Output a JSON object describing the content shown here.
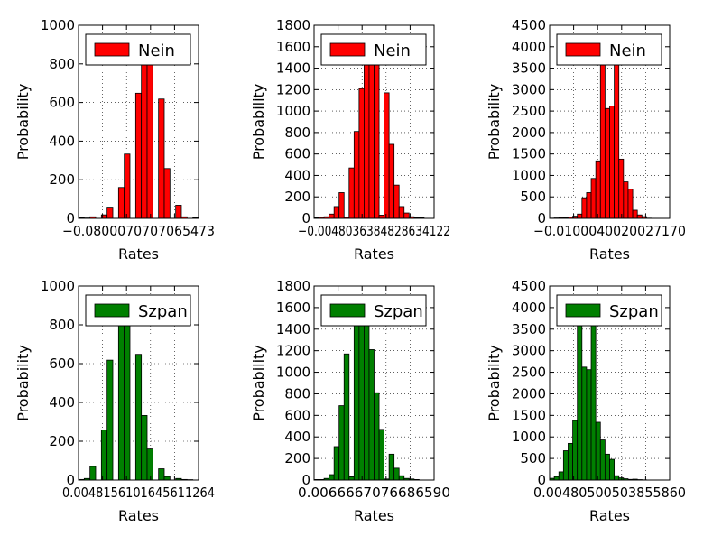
{
  "chart_data": [
    {
      "type": "bar",
      "xlabel": "Rates",
      "ylabel": "Probability",
      "ylim": [
        0,
        1000
      ],
      "yticks": [
        "0",
        "200",
        "400",
        "600",
        "800",
        "1000"
      ],
      "xtick_labels": "−0.0800070707065473",
      "legend": {
        "label": "Nein",
        "color": "#ff0000",
        "position": "top-left"
      },
      "grid": true,
      "bins": 21,
      "values": [
        3,
        2,
        8,
        0,
        18,
        58,
        0,
        160,
        333,
        0,
        648,
        829,
        902,
        0,
        618,
        258,
        0,
        68,
        8,
        0,
        3
      ]
    },
    {
      "type": "bar",
      "xlabel": "Rates",
      "ylabel": "Probability",
      "ylim": [
        0,
        1800
      ],
      "yticks": [
        "0",
        "200",
        "400",
        "600",
        "800",
        "1000",
        "1200",
        "1400",
        "1600",
        "1800"
      ],
      "xtick_labels": "−0.0048036384828634122",
      "legend": {
        "label": "Nein",
        "color": "#ff0000",
        "position": "top-left"
      },
      "grid": true,
      "bins": 24,
      "values": [
        5,
        10,
        15,
        40,
        110,
        240,
        10,
        470,
        810,
        1210,
        1500,
        1560,
        1520,
        30,
        1170,
        690,
        310,
        110,
        50,
        15,
        5,
        5,
        0,
        0
      ]
    },
    {
      "type": "bar",
      "xlabel": "Rates",
      "ylabel": "Probability",
      "ylim": [
        0,
        4500
      ],
      "yticks": [
        "0",
        "500",
        "1000",
        "1500",
        "2000",
        "2500",
        "3000",
        "3500",
        "4000",
        "4500"
      ],
      "xtick_labels": "−0.0100040020027170",
      "legend": {
        "label": "Nein",
        "color": "#ff0000",
        "position": "top-left"
      },
      "grid": true,
      "bins": 26,
      "values": [
        5,
        10,
        20,
        15,
        30,
        50,
        100,
        480,
        600,
        930,
        1340,
        3600,
        2560,
        2620,
        3630,
        1380,
        850,
        680,
        190,
        80,
        40,
        5,
        0,
        0,
        0,
        0
      ]
    },
    {
      "type": "bar",
      "xlabel": "Rates",
      "ylabel": "Probability",
      "ylim": [
        0,
        1000
      ],
      "yticks": [
        "0",
        "200",
        "400",
        "600",
        "800",
        "1000"
      ],
      "xtick_labels": "0.0048156101645611264",
      "legend": {
        "label": "Szpan",
        "color": "#008000",
        "position": "top-left"
      },
      "grid": true,
      "bins": 21,
      "values": [
        3,
        8,
        70,
        0,
        258,
        618,
        0,
        902,
        829,
        0,
        648,
        333,
        160,
        0,
        58,
        18,
        0,
        8,
        3,
        2,
        0
      ]
    },
    {
      "type": "bar",
      "xlabel": "Rates",
      "ylabel": "Probability",
      "ylim": [
        0,
        1800
      ],
      "yticks": [
        "0",
        "200",
        "400",
        "600",
        "800",
        "1000",
        "1200",
        "1400",
        "1600",
        "1800"
      ],
      "xtick_labels": "0.0066667076686590",
      "legend": {
        "label": "Szpan",
        "color": "#008000",
        "position": "top-left"
      },
      "grid": true,
      "bins": 24,
      "values": [
        5,
        5,
        15,
        50,
        310,
        690,
        1170,
        30,
        1520,
        1560,
        1500,
        1210,
        810,
        470,
        10,
        240,
        110,
        40,
        15,
        10,
        5,
        0,
        0,
        0
      ]
    },
    {
      "type": "bar",
      "xlabel": "Rates",
      "ylabel": "Probability",
      "ylim": [
        0,
        4500
      ],
      "yticks": [
        "0",
        "500",
        "1000",
        "1500",
        "2000",
        "2500",
        "3000",
        "3500",
        "4000",
        "4500"
      ],
      "xtick_labels": "0.00480500503855860",
      "legend": {
        "label": "Szpan",
        "color": "#008000",
        "position": "top-left"
      },
      "grid": true,
      "bins": 26,
      "values": [
        40,
        80,
        190,
        680,
        850,
        1380,
        3630,
        2620,
        2560,
        3600,
        1340,
        930,
        600,
        480,
        100,
        50,
        30,
        15,
        20,
        10,
        5,
        0,
        0,
        0,
        0,
        0
      ]
    }
  ]
}
